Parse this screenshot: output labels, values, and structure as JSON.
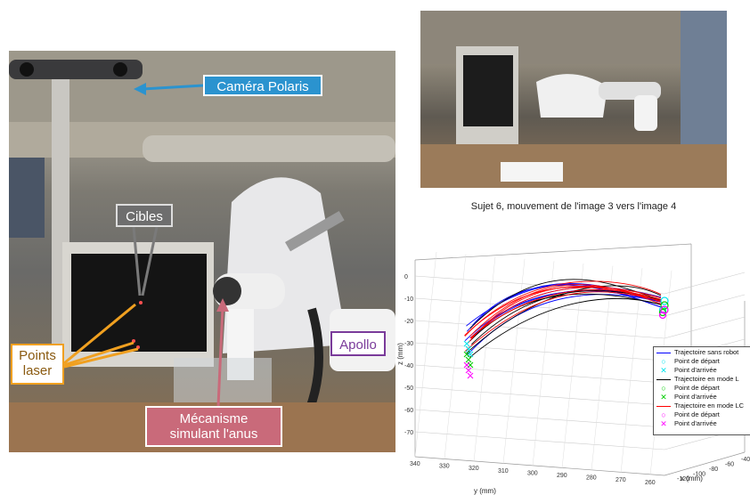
{
  "callouts": {
    "camera": "Caméra Polaris",
    "cibles": "Cibles",
    "apollo": "Apollo",
    "laser_line1": "Points",
    "laser_line2": "laser",
    "mecanisme_line1": "Mécanisme",
    "mecanisme_line2": "simulant l'anus"
  },
  "colors": {
    "camera_callout": "#2b93cf",
    "cibles_callout": "#6e6e6e",
    "apollo_callout": "#7a3b9a",
    "laser_callout": "#f0a020",
    "mecanisme_callout": "#c96a7a",
    "sans_robot": "#0000ff",
    "mode_l": "#000000",
    "mode_lc": "#ff0000",
    "start_sans_robot": "#00e5ee",
    "end_sans_robot": "#00e5ee",
    "start_mode_l": "#00cc00",
    "end_mode_l": "#00cc00",
    "start_mode_lc": "#ff00ff",
    "end_mode_lc": "#ff00ff"
  },
  "chart_data": {
    "type": "line",
    "title": "Sujet 6, mouvement de l'image 3 vers l'image 4",
    "xlabel": "y (mm)",
    "ylabel": "z (mm)",
    "zlabel": "x (mm)",
    "z_ticks": [
      "0",
      "-10",
      "-20",
      "-30",
      "-40",
      "-50",
      "-60",
      "-70"
    ],
    "y_ticks": [
      "340",
      "330",
      "320",
      "310",
      "300",
      "290",
      "280",
      "270",
      "260"
    ],
    "x_ticks": [
      "-40",
      "-60",
      "-80",
      "-100",
      "-120"
    ],
    "grid": true,
    "legend_position": "right",
    "legend": [
      {
        "label": "Trajectoire sans robot",
        "kind": "line",
        "color": "#0000ff"
      },
      {
        "label": "Point de départ",
        "kind": "circle",
        "color": "#00e5ee"
      },
      {
        "label": "Point d'arrivée",
        "kind": "cross",
        "color": "#00e5ee"
      },
      {
        "label": "Trajectoire en mode L",
        "kind": "line",
        "color": "#000000"
      },
      {
        "label": "Point de départ",
        "kind": "circle",
        "color": "#00cc00"
      },
      {
        "label": "Point d'arrivée",
        "kind": "cross",
        "color": "#00cc00"
      },
      {
        "label": "Trajectoire en mode LC",
        "kind": "line",
        "color": "#ff0000"
      },
      {
        "label": "Point de départ",
        "kind": "circle",
        "color": "#ff00ff"
      },
      {
        "label": "Point d'arrivée",
        "kind": "cross",
        "color": "#ff00ff"
      }
    ],
    "series": [
      {
        "name": "Trajectoire sans robot",
        "color": "#0000ff",
        "count": 7
      },
      {
        "name": "Trajectoire en mode L",
        "color": "#000000",
        "count": 5
      },
      {
        "name": "Trajectoire en mode LC",
        "color": "#ff0000",
        "count": 7
      }
    ]
  }
}
